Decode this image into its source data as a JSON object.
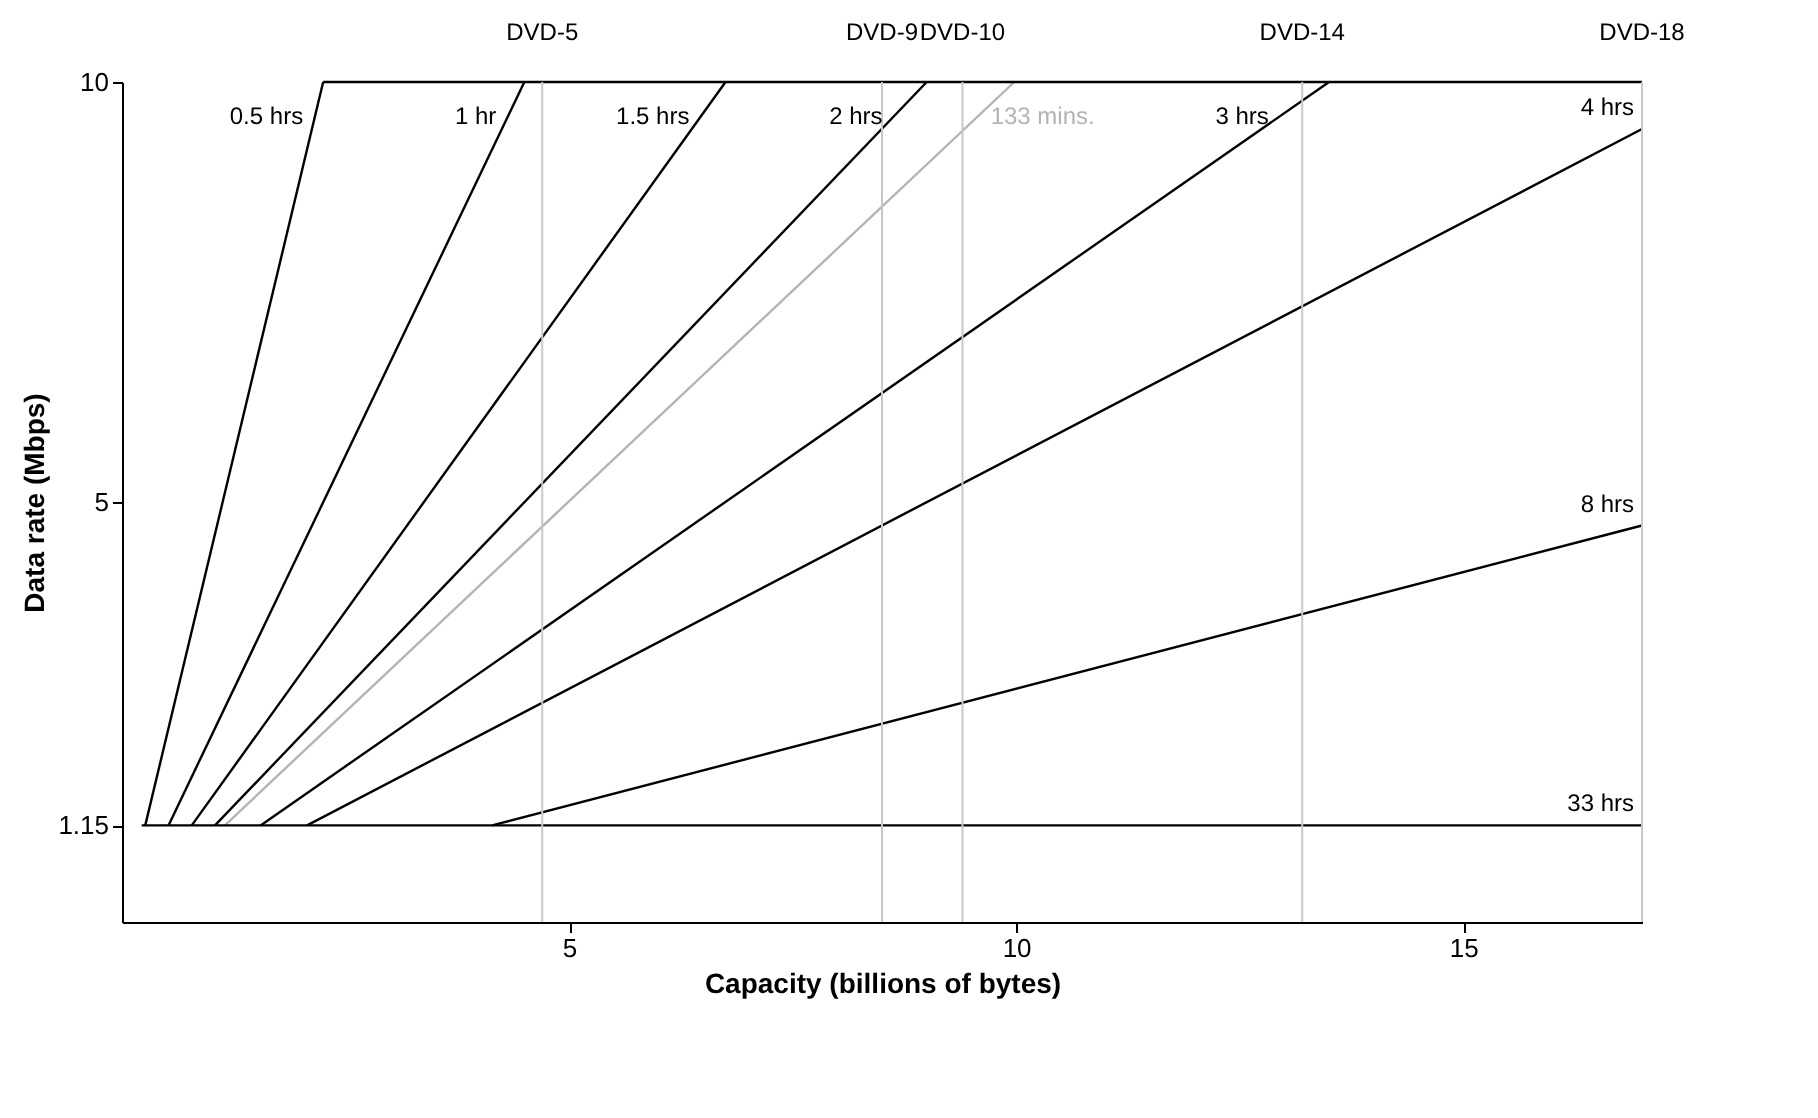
{
  "chart_data": {
    "type": "line",
    "xlabel": "Capacity (billions of bytes)",
    "ylabel": "Data rate (Mbps)",
    "xlim": [
      0,
      17
    ],
    "ylim": [
      0,
      10
    ],
    "xticks": [
      5,
      10,
      15
    ],
    "yticks": [
      1.15,
      5,
      10
    ],
    "series": [
      {
        "name": "0.5 hrs",
        "color": "#000000",
        "x": [
          0.26,
          2.25
        ],
        "values": [
          1.15,
          10
        ]
      },
      {
        "name": "1 hr",
        "color": "#000000",
        "x": [
          0.52,
          4.5
        ],
        "values": [
          1.15,
          10
        ]
      },
      {
        "name": "1.5 hrs",
        "color": "#000000",
        "x": [
          0.78,
          6.75
        ],
        "values": [
          1.15,
          10
        ]
      },
      {
        "name": "2 hrs",
        "color": "#000000",
        "x": [
          1.04,
          9.0
        ],
        "values": [
          1.15,
          10
        ]
      },
      {
        "name": "133 mins.",
        "color": "#b4b4b4",
        "x": [
          1.15,
          9.98
        ],
        "values": [
          1.15,
          10
        ]
      },
      {
        "name": "3 hrs",
        "color": "#000000",
        "x": [
          1.55,
          13.5
        ],
        "values": [
          1.15,
          10
        ]
      },
      {
        "name": "4 hrs",
        "color": "#000000",
        "x": [
          2.07,
          17
        ],
        "values": [
          1.15,
          9.44
        ]
      },
      {
        "name": "8 hrs",
        "color": "#000000",
        "x": [
          4.14,
          17
        ],
        "values": [
          1.15,
          4.72
        ]
      },
      {
        "name": "33 hrs",
        "color": "#000000",
        "x": [
          0.22,
          17
        ],
        "values": [
          1.15,
          1.15
        ]
      },
      {
        "color": "#000000",
        "x": [
          2.25,
          17
        ],
        "values": [
          10,
          10
        ]
      }
    ],
    "ref_lines": [
      {
        "axis": "x",
        "value": 4.7,
        "label": "DVD-5",
        "color": "#c8c8c8"
      },
      {
        "axis": "x",
        "value": 8.5,
        "label": "DVD-9",
        "color": "#c8c8c8"
      },
      {
        "axis": "x",
        "value": 9.4,
        "label": "DVD-10",
        "color": "#c8c8c8"
      },
      {
        "axis": "x",
        "value": 13.2,
        "label": "DVD-14",
        "color": "#c8c8c8"
      },
      {
        "axis": "x",
        "value": 17,
        "label": "DVD-18",
        "color": "#c8c8c8"
      }
    ]
  }
}
